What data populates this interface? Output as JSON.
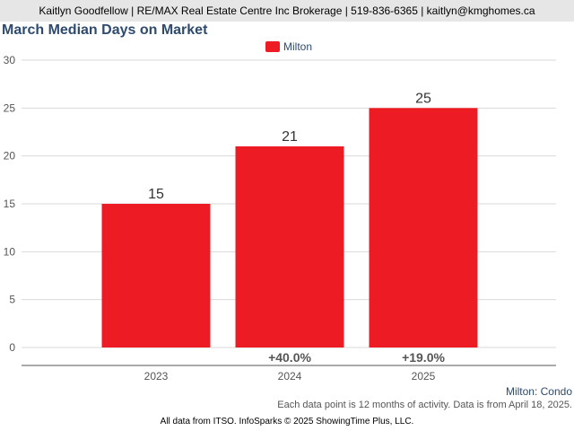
{
  "header": {
    "text": "Kaitlyn Goodfellow | RE/MAX Real Estate Centre Inc Brokerage | 519-836-6365 | kaitlyn@kmghomes.ca"
  },
  "chart_data": {
    "type": "bar",
    "title": "March Median Days on Market",
    "categories": [
      "2023",
      "2024",
      "2025"
    ],
    "series": [
      {
        "name": "Milton",
        "values": [
          15,
          21,
          25
        ],
        "color": "#ed1c24"
      }
    ],
    "changes": [
      "",
      "+40.0%",
      "+19.0%"
    ],
    "ylim": [
      0,
      30
    ],
    "yticks": [
      0,
      5,
      10,
      15,
      20,
      25,
      30
    ],
    "grid": true,
    "legend": "top-center",
    "xlabel": "",
    "ylabel": ""
  },
  "geo_label": "Milton: Condo",
  "footnote": "Each data point is 12 months of activity. Data is from April 18, 2025.",
  "footer": "All data from ITSO. InfoSparks © 2025 ShowingTime Plus, LLC."
}
